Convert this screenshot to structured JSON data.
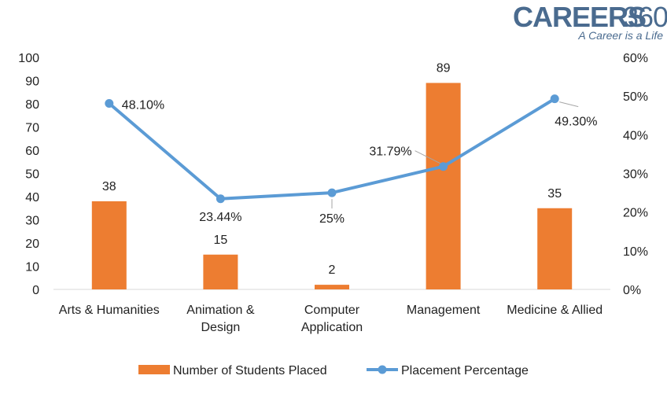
{
  "logo": {
    "brand": "CAREERS",
    "number": "360",
    "tagline": "A Career is a Life",
    "color": "#4a6b8f"
  },
  "chart_data": {
    "type": "bar",
    "categories": [
      [
        "Arts & Humanities"
      ],
      [
        "Animation &",
        "Design"
      ],
      [
        "Computer",
        "Application"
      ],
      [
        "Management"
      ],
      [
        "Medicine & Allied"
      ]
    ],
    "series": [
      {
        "name": "Number of Students Placed",
        "type": "bar",
        "axis": "left",
        "color": "#ed7d31",
        "values": [
          38,
          15,
          2,
          89,
          35
        ],
        "labels": [
          "38",
          "15",
          "2",
          "89",
          "35"
        ]
      },
      {
        "name": "Placement Percentage",
        "type": "line",
        "axis": "right",
        "color": "#5b9bd5",
        "values": [
          48.1,
          23.44,
          25,
          31.79,
          49.3
        ],
        "labels": [
          "48.10%",
          "23.44%",
          "25%",
          "31.79%",
          "49.30%"
        ]
      }
    ],
    "left_axis": {
      "min": 0,
      "max": 100,
      "step": 10,
      "ticks": [
        "0",
        "10",
        "20",
        "30",
        "40",
        "50",
        "60",
        "70",
        "80",
        "90",
        "100"
      ]
    },
    "right_axis": {
      "min": 0,
      "max": 60,
      "step": 10,
      "ticks": [
        "0%",
        "10%",
        "20%",
        "30%",
        "40%",
        "50%",
        "60%"
      ]
    },
    "grid": false,
    "legend_position": "bottom"
  }
}
